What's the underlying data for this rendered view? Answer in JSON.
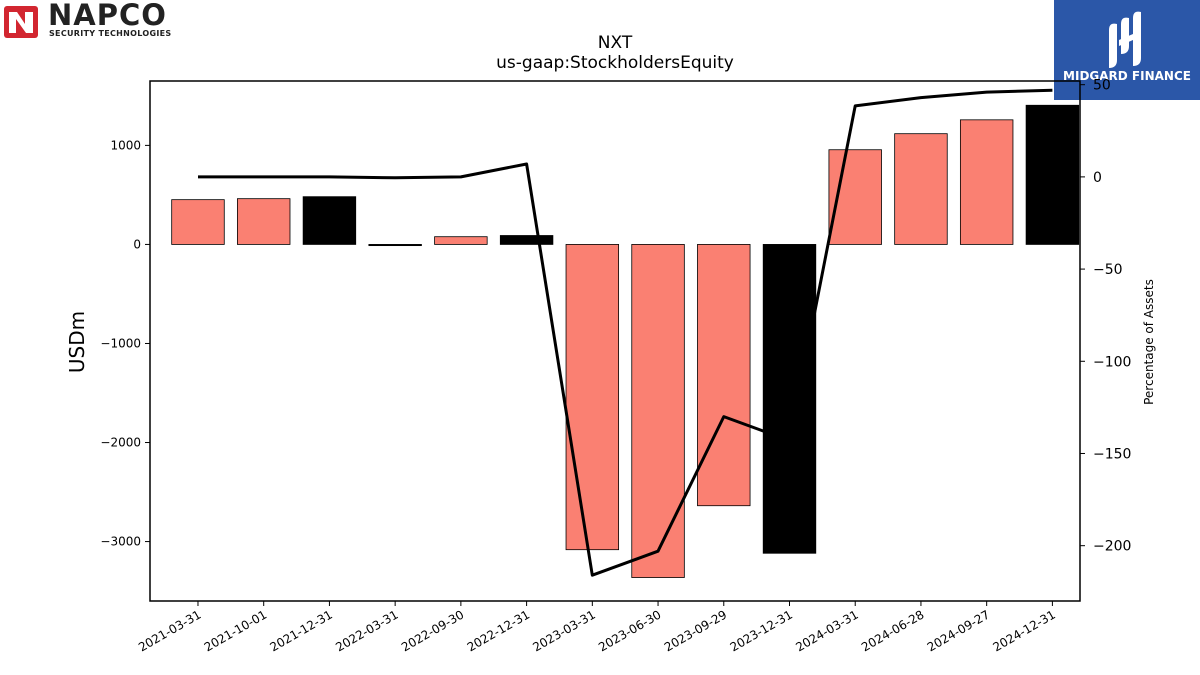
{
  "logos": {
    "napco_name": "NAPCO",
    "napco_sub": "SECURITY TECHNOLOGIES",
    "napco_color": "#d22630",
    "midgard_name": "MIDGARD FINANCE",
    "midgard_color": "#2b57a8"
  },
  "chart_data": {
    "type": "bar",
    "title": "NXT",
    "subtitle": "us-gaap:StockholdersEquity",
    "ylabel": "USDm",
    "y2label": "Percentage of Assets",
    "categories": [
      "2021-03-31",
      "2021-10-01",
      "2021-12-31",
      "2022-03-31",
      "2022-09-30",
      "2022-12-31",
      "2023-03-31",
      "2023-06-30",
      "2023-09-29",
      "2023-12-31",
      "2024-03-31",
      "2024-06-28",
      "2024-09-27",
      "2024-12-31"
    ],
    "series": [
      {
        "values": [
          452,
          462,
          482,
          -12,
          78,
          90,
          -3082,
          -3363,
          -2638,
          -3118,
          956,
          1118,
          1258,
          1405
        ],
        "bar_colors": [
          "#fa8072",
          "#fa8072",
          "#000000",
          "#000000",
          "#fa8072",
          "#000000",
          "#fa8072",
          "#fa8072",
          "#fa8072",
          "#000000",
          "#fa8072",
          "#fa8072",
          "#fa8072",
          "#000000"
        ],
        "axis": "left"
      },
      {
        "type": "line",
        "axis": "right",
        "color": "#000000",
        "values": [
          0,
          0,
          0,
          -0.5,
          0,
          7,
          -216,
          -203,
          -130,
          -143,
          38.5,
          43,
          46,
          47
        ]
      }
    ],
    "ylim": [
      -3600,
      1650
    ],
    "yticks": [
      1000,
      0,
      -1000,
      -2000,
      -3000
    ],
    "ytick_labels": [
      "1000",
      "0",
      "−1000",
      "−2000",
      "−3000"
    ],
    "y2lim": [
      -230,
      52
    ],
    "y2ticks": [
      50,
      0,
      -50,
      -100,
      -150,
      -200
    ],
    "y2tick_labels": [
      "50",
      "0",
      "−50",
      "−100",
      "−150",
      "−200"
    ],
    "grid": false
  }
}
